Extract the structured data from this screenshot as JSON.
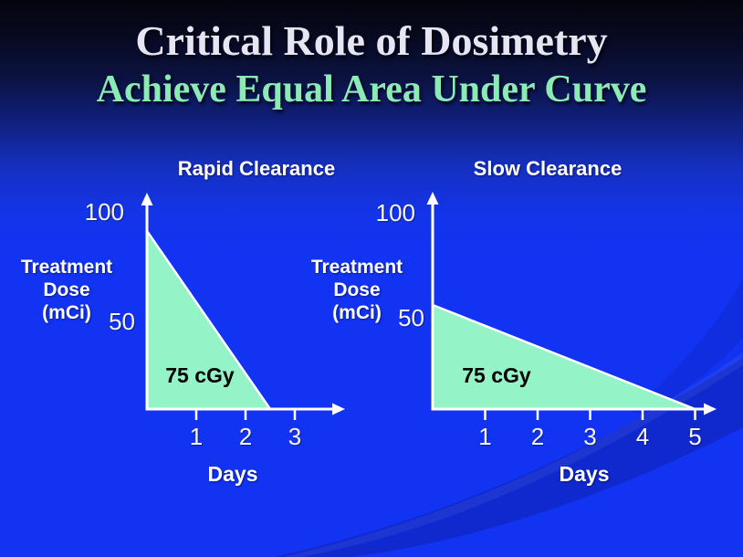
{
  "slide": {
    "title": "Critical Role of Dosimetry",
    "subtitle": "Achieve Equal Area Under Curve",
    "colors": {
      "title_text": "#e6e5f2",
      "subtitle_text": "#8ceab5",
      "background_top": "#05050f",
      "background_bottom": "#1233f2",
      "area_fill": "#94f3c7",
      "axis": "#ffffff",
      "area_label_text": "#000000"
    }
  },
  "chart_data": [
    {
      "type": "area",
      "title": "Rapid Clearance",
      "xlabel": "Days",
      "ylabel": "Treatment Dose (mCi)",
      "ylabel_lines": [
        "Treatment",
        "Dose",
        "(mCi)"
      ],
      "x": [
        0,
        2.5
      ],
      "y": [
        100,
        0
      ],
      "x_ticks": [
        1,
        2,
        3
      ],
      "y_ticks": [
        100,
        50
      ],
      "xlim": [
        0,
        4
      ],
      "ylim": [
        0,
        120
      ],
      "area_label": "75 cGy",
      "grid": false,
      "legend": "none"
    },
    {
      "type": "area",
      "title": "Slow Clearance",
      "xlabel": "Days",
      "ylabel": "Treatment Dose (mCi)",
      "ylabel_lines": [
        "Treatment",
        "Dose",
        "(mCi)"
      ],
      "x": [
        0,
        5
      ],
      "y": [
        50,
        0
      ],
      "x_ticks": [
        1,
        2,
        3,
        4,
        5
      ],
      "y_ticks": [
        100,
        50
      ],
      "xlim": [
        0,
        5.4
      ],
      "ylim": [
        0,
        120
      ],
      "area_label": "75 cGy",
      "grid": false,
      "legend": "none"
    }
  ]
}
